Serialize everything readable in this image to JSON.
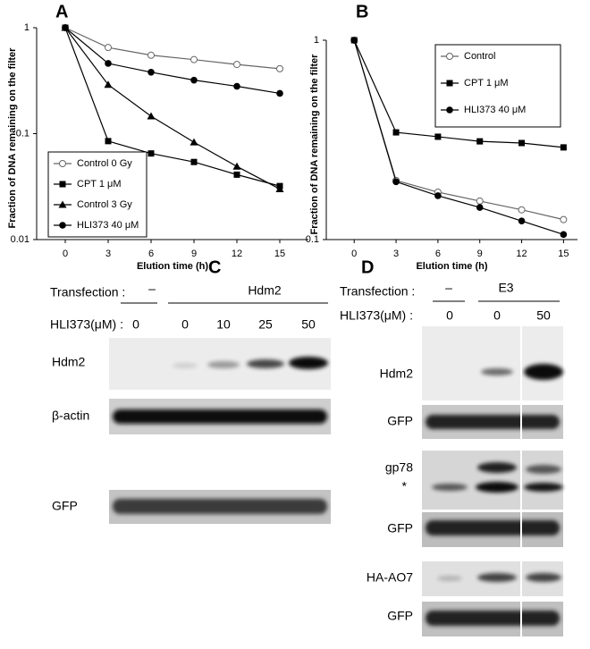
{
  "chart_data": [
    {
      "type": "line",
      "panel": "A",
      "ylabel": "Fraction of DNA remaining on the filter",
      "xlabel": "Elution time (h)",
      "x": [
        0,
        3,
        6,
        9,
        12,
        15
      ],
      "xlim": [
        -2,
        17
      ],
      "xticks": [
        0,
        3,
        6,
        9,
        12,
        15
      ],
      "ylim": [
        0.01,
        1
      ],
      "yticks": [
        0.01,
        0.1,
        1
      ],
      "log_y": true,
      "grid": false,
      "legend": "lower left",
      "series": [
        {
          "name": "Control 0 Gy",
          "color": "#666666",
          "marker": "open-circle",
          "values": [
            1,
            0.65,
            0.55,
            0.5,
            0.45,
            0.41
          ]
        },
        {
          "name": "CPT 1 μM",
          "color": "#000000",
          "marker": "square",
          "values": [
            1,
            0.085,
            0.065,
            0.054,
            0.041,
            0.032
          ]
        },
        {
          "name": "Control 3 Gy",
          "color": "#000000",
          "marker": "triangle",
          "values": [
            1,
            0.29,
            0.146,
            0.083,
            0.049,
            0.03
          ]
        },
        {
          "name": "HLI373 40 μM",
          "color": "#000000",
          "marker": "circle",
          "values": [
            1,
            0.46,
            0.38,
            0.32,
            0.28,
            0.24
          ]
        }
      ]
    },
    {
      "type": "line",
      "panel": "B",
      "ylabel": "Fraction of DNA remaining on the filter",
      "xlabel": "Elution time (h)",
      "x": [
        0,
        3,
        6,
        9,
        12,
        15
      ],
      "xlim": [
        -2,
        16
      ],
      "xticks": [
        0,
        3,
        6,
        9,
        12,
        15
      ],
      "ylim": [
        0.1,
        1
      ],
      "yticks": [
        0.1,
        1
      ],
      "log_y": true,
      "grid": false,
      "legend": "upper right",
      "series": [
        {
          "name": "Control",
          "color": "#666666",
          "marker": "open-circle",
          "values": [
            1,
            0.198,
            0.173,
            0.156,
            0.141,
            0.126
          ]
        },
        {
          "name": "CPT 1 μM",
          "color": "#000000",
          "marker": "square",
          "values": [
            1,
            0.345,
            0.328,
            0.311,
            0.305,
            0.29
          ]
        },
        {
          "name": "HLI373 40 μM",
          "color": "#000000",
          "marker": "circle",
          "values": [
            1,
            0.195,
            0.166,
            0.145,
            0.124,
            0.106
          ]
        }
      ]
    }
  ],
  "panel_c": {
    "label": "C",
    "transfection_label": "Transfection :",
    "transfection_groups": [
      "–",
      "Hdm2"
    ],
    "dose_label": "HLI373(μM) :",
    "doses": [
      0,
      0,
      10,
      25,
      50
    ],
    "rows": [
      "Hdm2",
      "β-actin",
      "GFP"
    ]
  },
  "panel_d": {
    "label": "D",
    "transfection_label": "Transfection :",
    "transfection_groups": [
      "–",
      "E3"
    ],
    "dose_label": "HLI373(μM) :",
    "doses": [
      0,
      0,
      50
    ],
    "rows": [
      "Hdm2",
      "GFP",
      "gp78",
      "*",
      "GFP",
      "HA-AO7",
      "GFP"
    ]
  }
}
